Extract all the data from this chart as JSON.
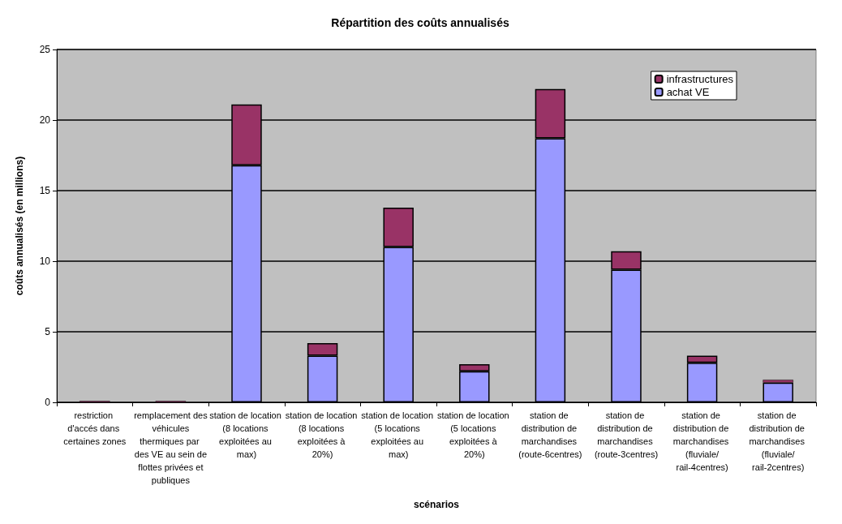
{
  "chart_data": {
    "type": "bar",
    "title": "Répartition des coûts annualisés",
    "xlabel": "scénarios",
    "ylabel": "coûts annualisés (en millions)",
    "categories": [
      "restriction d'accés dans certaines zones",
      "remplacement des véhicules thermiques par des VE au sein de flottes privées et publiques",
      "station de location (8 locations exploitées au max)",
      "station de location (8 locations exploitées à 20%)",
      "station de location (5 locations exploitées au max)",
      "station de location (5 locations exploitées à 20%)",
      "station de distribution de marchandises (route-6centres)",
      "station de distribution de marchandises (route-3centres)",
      "station de distribution de marchandises (fluviale/rail-4centres)",
      "station de distribution de marchandises (fluviale/rail-2centres)"
    ],
    "series": [
      {
        "name": "achat VE",
        "color": "#9999ff",
        "values": [
          null,
          null,
          16.8,
          3.3,
          11.0,
          2.2,
          18.7,
          9.4,
          2.8,
          1.4
        ]
      },
      {
        "name": "infrastructures",
        "color": "#993366",
        "values": [
          0.1,
          0.1,
          4.3,
          0.9,
          2.8,
          0.5,
          3.5,
          1.3,
          0.5,
          0.2
        ]
      }
    ],
    "stacked": true,
    "ylim": [
      0,
      25
    ],
    "yticks": [
      0,
      5,
      10,
      15,
      20,
      25
    ],
    "grid": "y",
    "legend": "top right"
  }
}
